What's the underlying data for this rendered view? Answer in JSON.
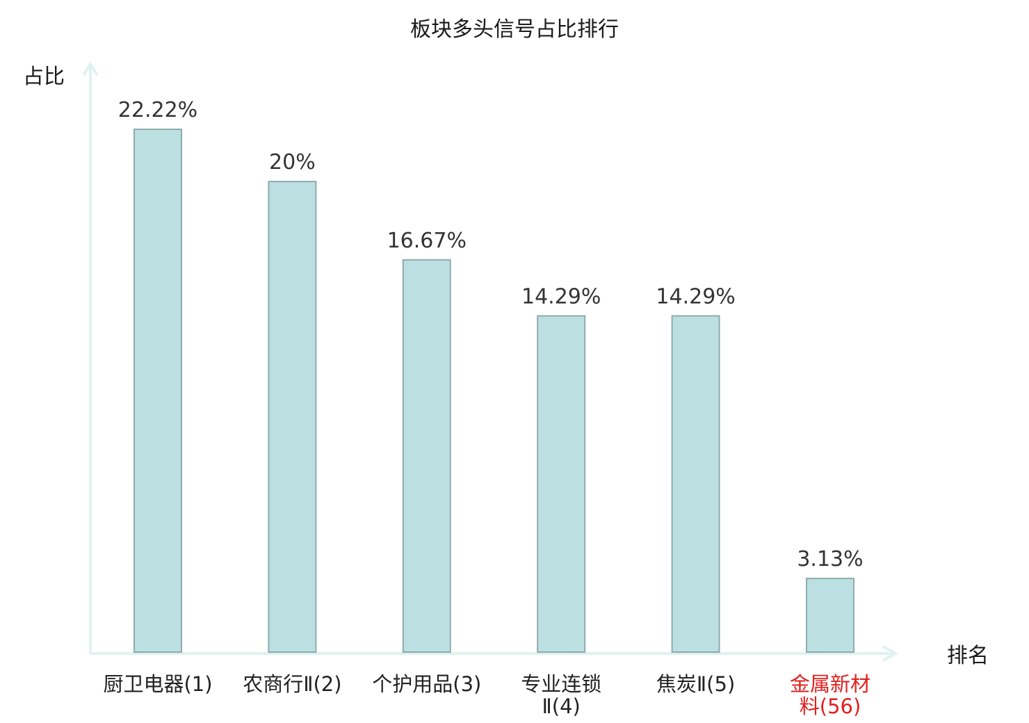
{
  "chart_data": {
    "type": "bar",
    "title": "板块多头信号占比排行",
    "ylabel": "占比",
    "xlabel": "排名",
    "categories": [
      {
        "lines": [
          "厨卫电器(1)"
        ],
        "highlight": false
      },
      {
        "lines": [
          "农商行Ⅱ(2)"
        ],
        "highlight": false
      },
      {
        "lines": [
          "个护用品(3)"
        ],
        "highlight": false
      },
      {
        "lines": [
          "专业连锁",
          "Ⅱ(4)"
        ],
        "highlight": false
      },
      {
        "lines": [
          "焦炭Ⅱ(5)"
        ],
        "highlight": false
      },
      {
        "lines": [
          "金属新材",
          "料(56)"
        ],
        "highlight": true
      }
    ],
    "values": [
      22.22,
      20,
      16.67,
      14.29,
      14.29,
      3.13
    ],
    "value_labels": [
      "22.22%",
      "20%",
      "16.67%",
      "14.29%",
      "14.29%",
      "3.13%"
    ],
    "ylim": [
      0,
      22.22
    ],
    "grid": false,
    "colors": {
      "bar_fill": "#bce0e2",
      "bar_stroke": "#8eaaae",
      "axis": "#e0f2ef",
      "highlight_text": "#e0201c",
      "normal_text": "#222222"
    }
  }
}
